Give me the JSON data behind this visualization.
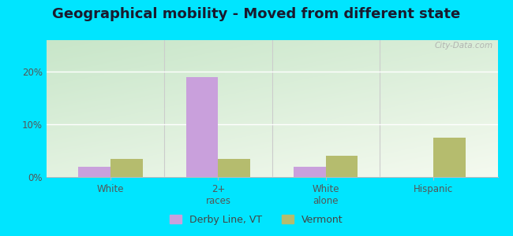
{
  "title": "Geographical mobility - Moved from different state",
  "categories": [
    "White",
    "2+\nraces",
    "White\nalone",
    "Hispanic"
  ],
  "derby_line_values": [
    2.0,
    19.0,
    2.0,
    0.0
  ],
  "vermont_values": [
    3.5,
    3.5,
    4.0,
    7.5
  ],
  "derby_line_color": "#c9a0dc",
  "vermont_color": "#b5bc6e",
  "outer_bg": "#00e5ff",
  "yticks": [
    0,
    10,
    20
  ],
  "ytick_labels": [
    "0%",
    "10%",
    "20%"
  ],
  "ylim": [
    0,
    26
  ],
  "title_fontsize": 13,
  "legend_labels": [
    "Derby Line, VT",
    "Vermont"
  ],
  "bar_width": 0.3,
  "grad_top_color": "#c8e6c9",
  "grad_bottom_color": "#f5faf0"
}
